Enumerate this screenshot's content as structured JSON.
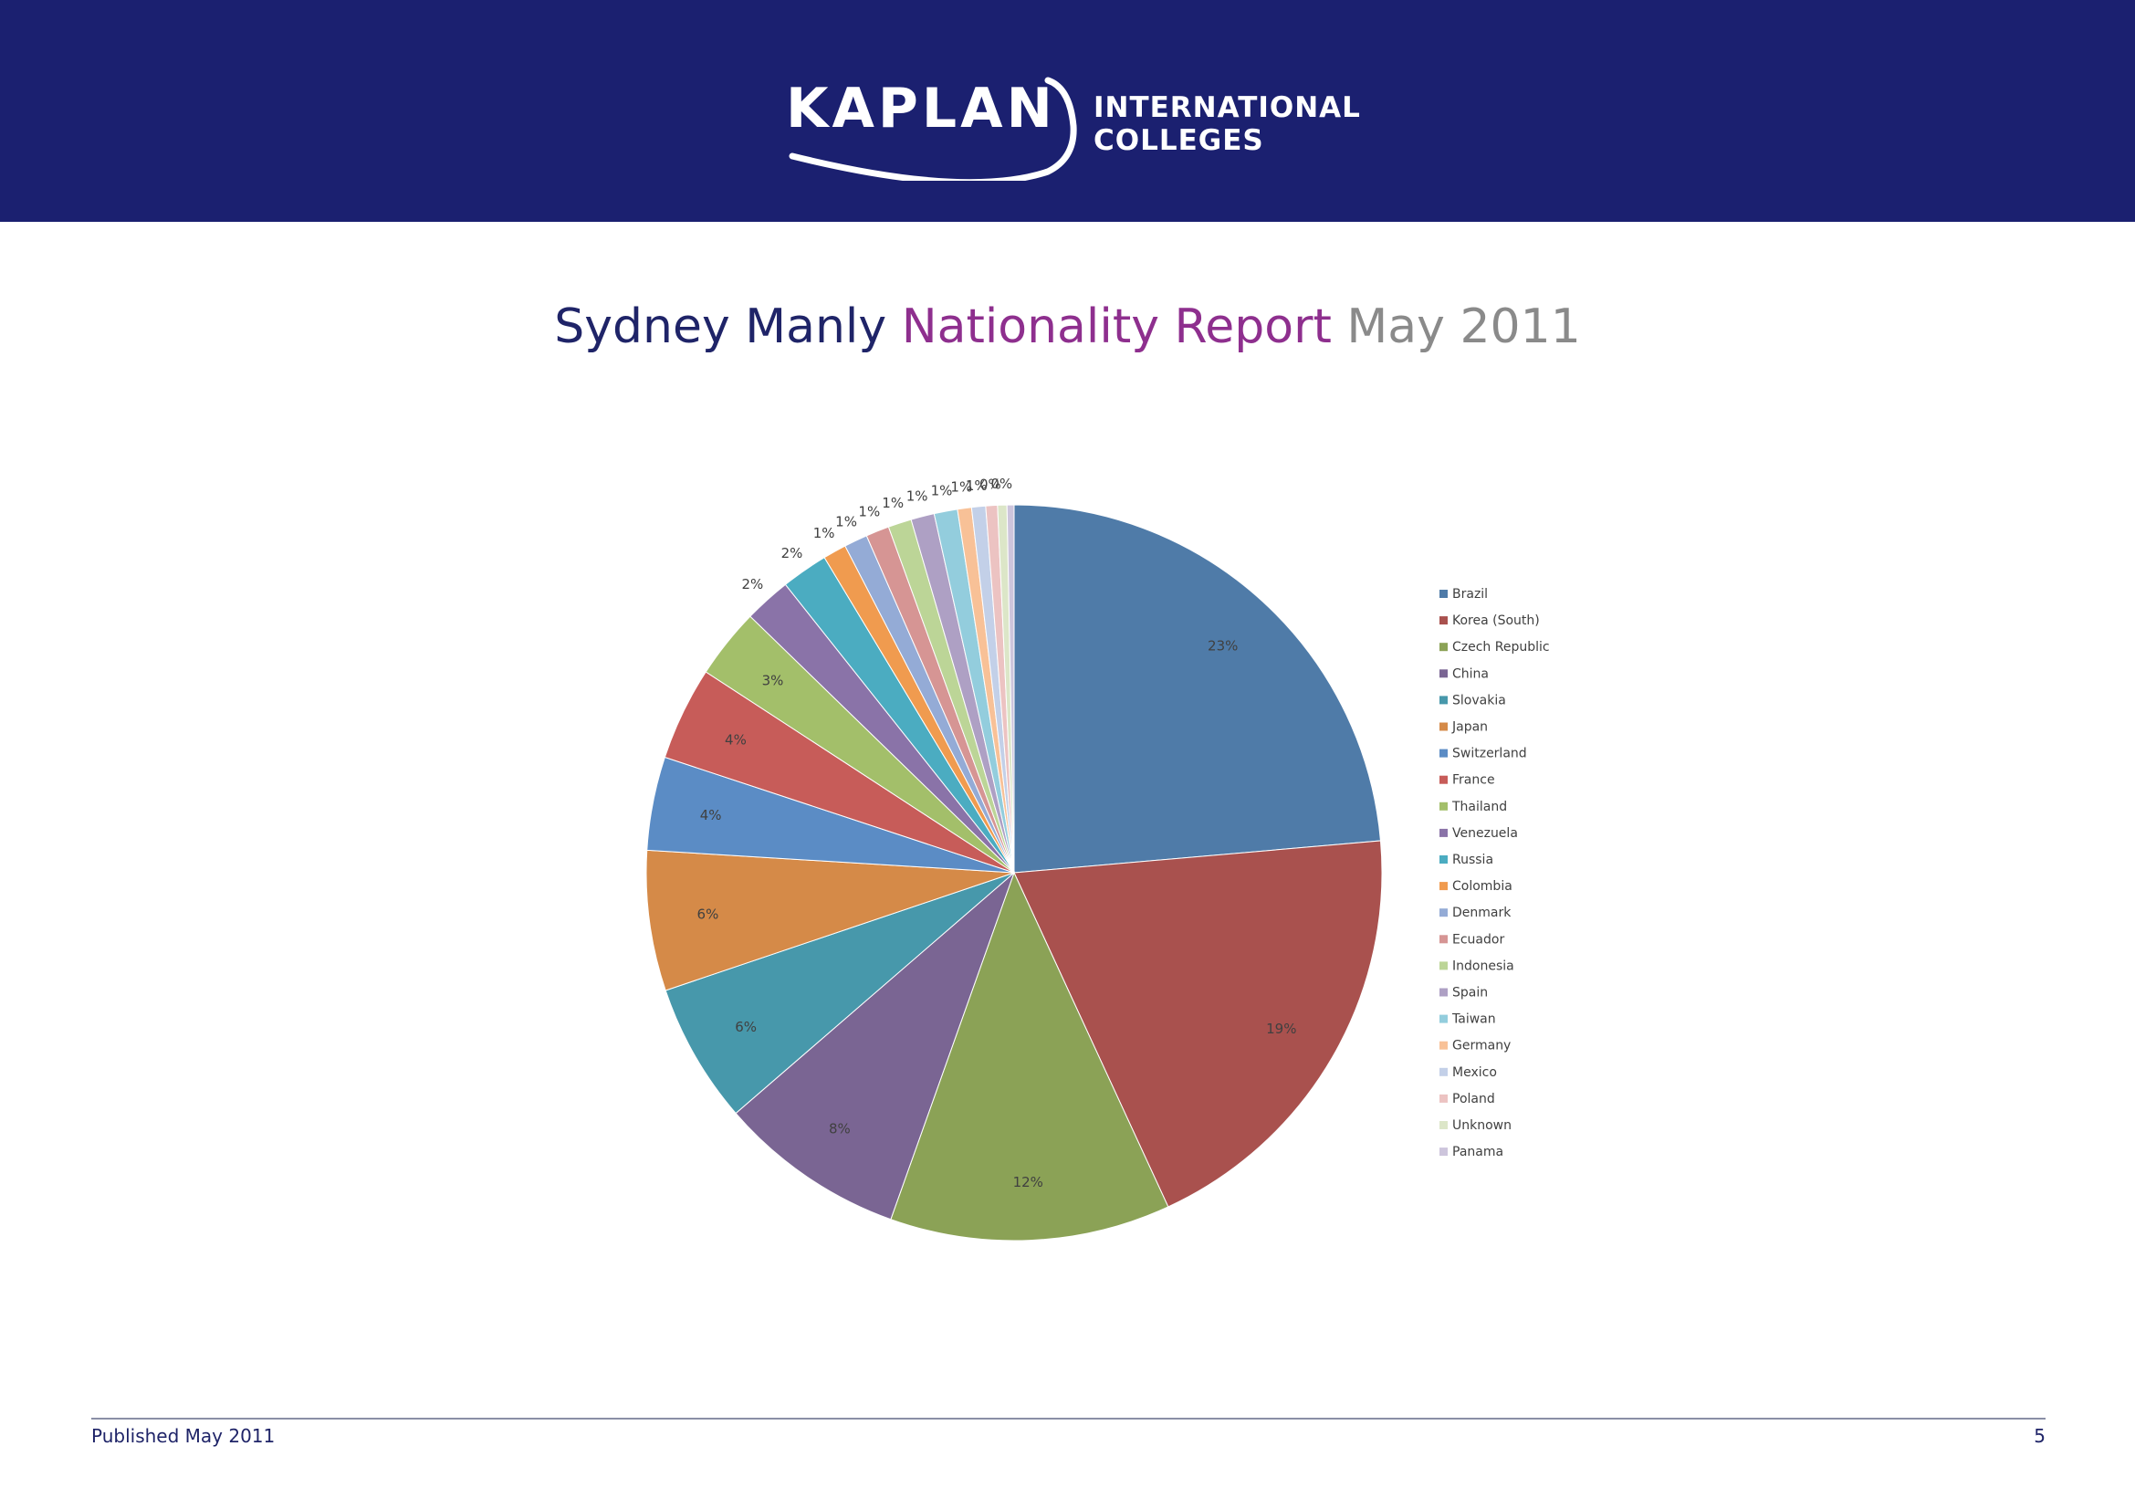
{
  "header": {
    "logo_word": "KAPLAN",
    "logo_line1": "INTERNATIONAL",
    "logo_line2": "COLLEGES",
    "background_color": "#1b2070"
  },
  "title": {
    "part1": "Sydney Manly",
    "part2": "Nationality Report",
    "part3": "May 2011"
  },
  "chart_data": {
    "type": "pie",
    "title": "",
    "legend_position": "right",
    "slices": [
      {
        "label": "Brazil",
        "value": 23,
        "display": "23%",
        "color": "#4f7ba8"
      },
      {
        "label": "Korea (South)",
        "value": 19,
        "display": "19%",
        "color": "#a9514e"
      },
      {
        "label": "Czech Republic",
        "value": 12,
        "display": "12%",
        "color": "#8ba256"
      },
      {
        "label": "China",
        "value": 8,
        "display": "8%",
        "color": "#7a6593"
      },
      {
        "label": "Slovakia",
        "value": 6,
        "display": "6%",
        "color": "#4798ab"
      },
      {
        "label": "Japan",
        "value": 6,
        "display": "6%",
        "color": "#d58a48"
      },
      {
        "label": "Switzerland",
        "value": 4,
        "display": "4%",
        "color": "#5b8cc5"
      },
      {
        "label": "France",
        "value": 4,
        "display": "4%",
        "color": "#c75c59"
      },
      {
        "label": "Thailand",
        "value": 3,
        "display": "3%",
        "color": "#a3bf6a"
      },
      {
        "label": "Venezuela",
        "value": 2,
        "display": "2%",
        "color": "#8a73a8"
      },
      {
        "label": "Russia",
        "value": 2,
        "display": "2%",
        "color": "#4bacc1"
      },
      {
        "label": "Colombia",
        "value": 1,
        "display": "1%",
        "color": "#f09b4f"
      },
      {
        "label": "Denmark",
        "value": 1,
        "display": "1%",
        "color": "#94abd6"
      },
      {
        "label": "Ecuador",
        "value": 1,
        "display": "1%",
        "color": "#d69594"
      },
      {
        "label": "Indonesia",
        "value": 1,
        "display": "1%",
        "color": "#bcd597"
      },
      {
        "label": "Spain",
        "value": 1,
        "display": "1%",
        "color": "#aea0c4"
      },
      {
        "label": "Taiwan",
        "value": 1,
        "display": "1%",
        "color": "#93cddd"
      },
      {
        "label": "Germany",
        "value": 0.6,
        "display": "1%",
        "color": "#f8c197"
      },
      {
        "label": "Mexico",
        "value": 0.6,
        "display": "1%",
        "color": "#c3d0e8"
      },
      {
        "label": "Poland",
        "value": 0.5,
        "display": "0%",
        "color": "#ecc3c2"
      },
      {
        "label": "Unknown",
        "value": 0.4,
        "display": "0%",
        "color": "#dce6c8"
      },
      {
        "label": "Panama",
        "value": 0.3,
        "display": "",
        "color": "#cdc5dc"
      }
    ]
  },
  "footer": {
    "published": "Published May 2011",
    "page_number": "5"
  }
}
